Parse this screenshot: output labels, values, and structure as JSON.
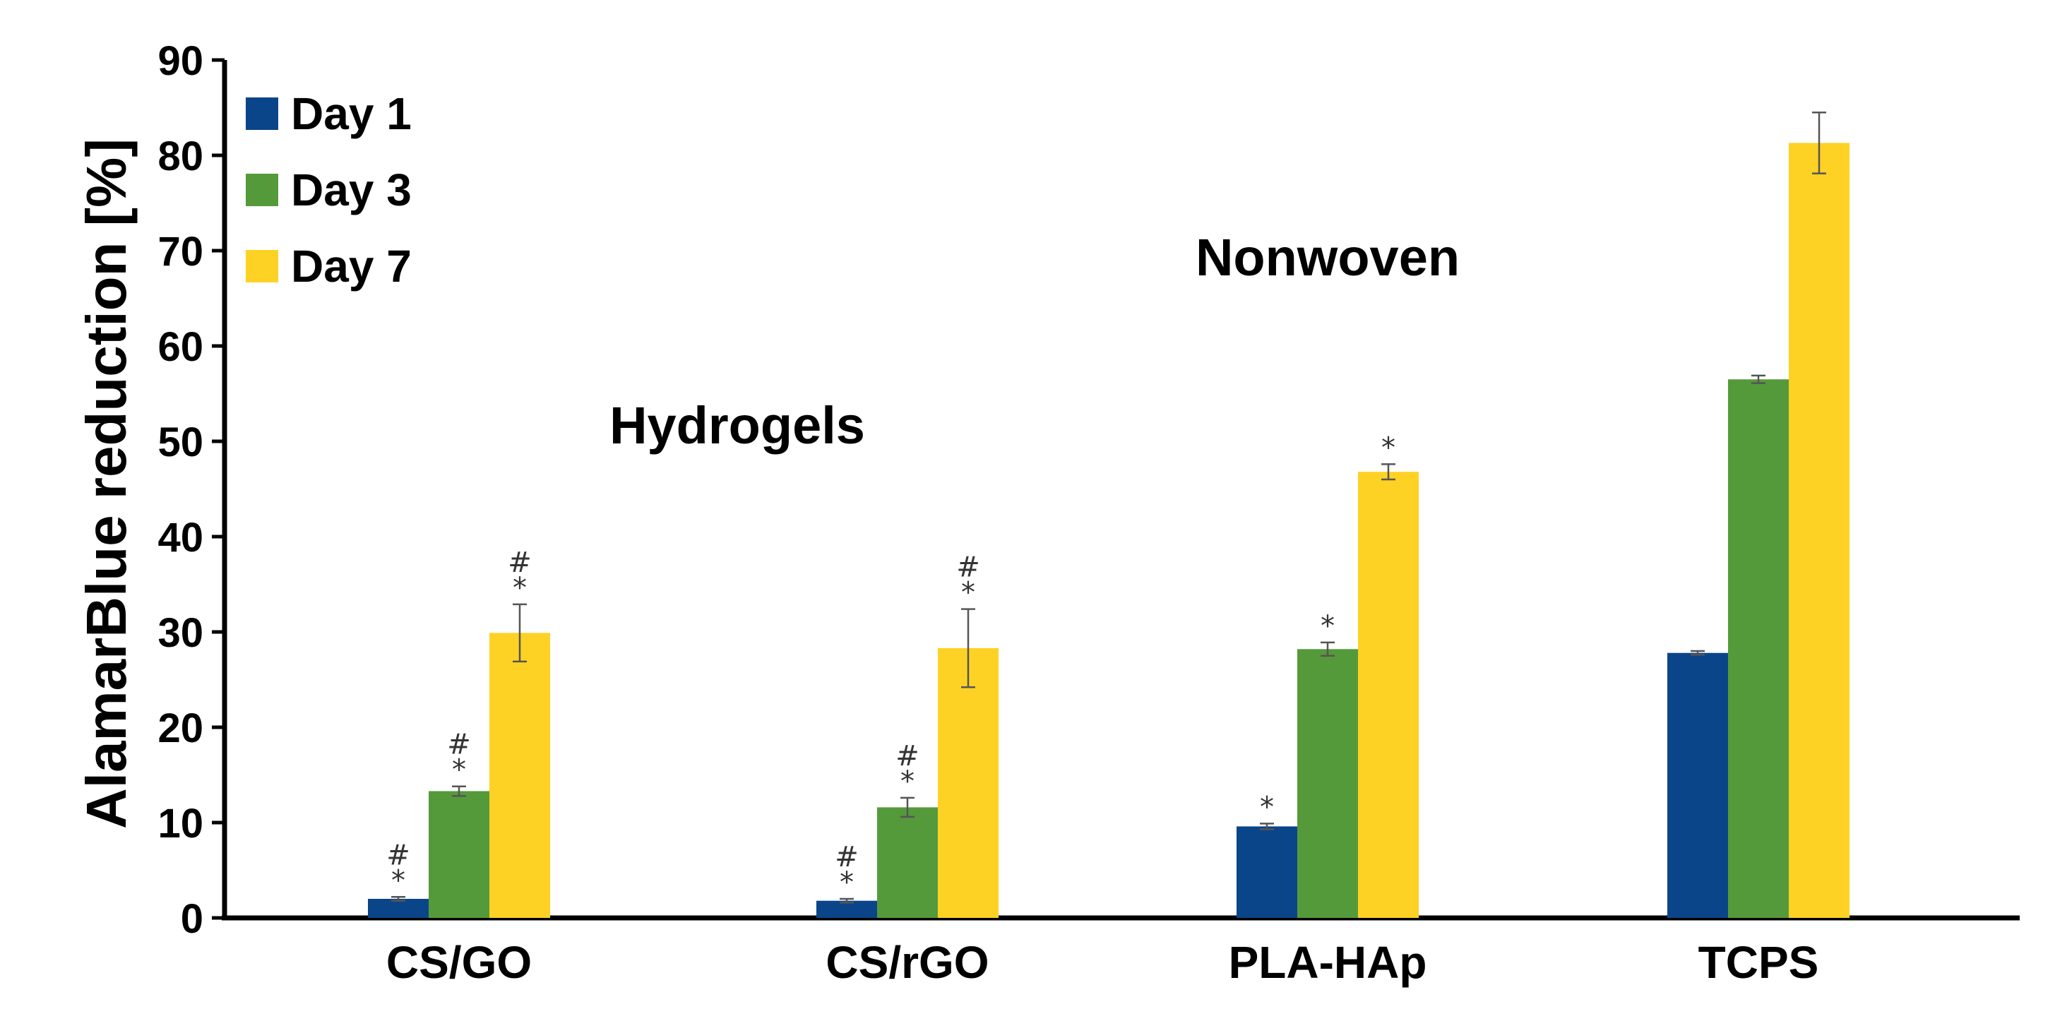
{
  "chart_data": {
    "type": "bar",
    "title": "",
    "xlabel": "",
    "ylabel": "AlamarBlue reduction [%]",
    "ylim": [
      0,
      90
    ],
    "yticks": [
      0,
      10,
      20,
      30,
      40,
      50,
      60,
      70,
      80,
      90
    ],
    "categories": [
      "CS/GO",
      "CS/rGO",
      "PLA-HAp",
      "TCPS"
    ],
    "series": [
      {
        "name": "Day 1",
        "color": "#0b4589",
        "values": [
          2.0,
          1.8,
          9.6,
          27.8
        ],
        "errors": [
          0.2,
          0.2,
          0.3,
          0.2
        ],
        "marks": [
          [
            "#",
            "*"
          ],
          [
            "#",
            "*"
          ],
          [
            "*"
          ],
          []
        ]
      },
      {
        "name": "Day 3",
        "color": "#559a3a",
        "values": [
          13.3,
          11.6,
          28.2,
          56.5
        ],
        "errors": [
          0.5,
          1.0,
          0.7,
          0.4
        ],
        "marks": [
          [
            "#",
            "*"
          ],
          [
            "#",
            "*"
          ],
          [
            "*"
          ],
          []
        ]
      },
      {
        "name": "Day 7",
        "color": "#fdd224",
        "values": [
          29.9,
          28.3,
          46.8,
          81.3
        ],
        "errors": [
          3.0,
          4.1,
          0.8,
          3.2
        ],
        "marks": [
          [
            "#",
            "*"
          ],
          [
            "#",
            "*"
          ],
          [
            "*"
          ],
          []
        ]
      }
    ],
    "annotations": [
      "Hydrogels",
      "Nonwoven"
    ],
    "legend": {
      "placement": "top-left"
    },
    "grid": false
  }
}
